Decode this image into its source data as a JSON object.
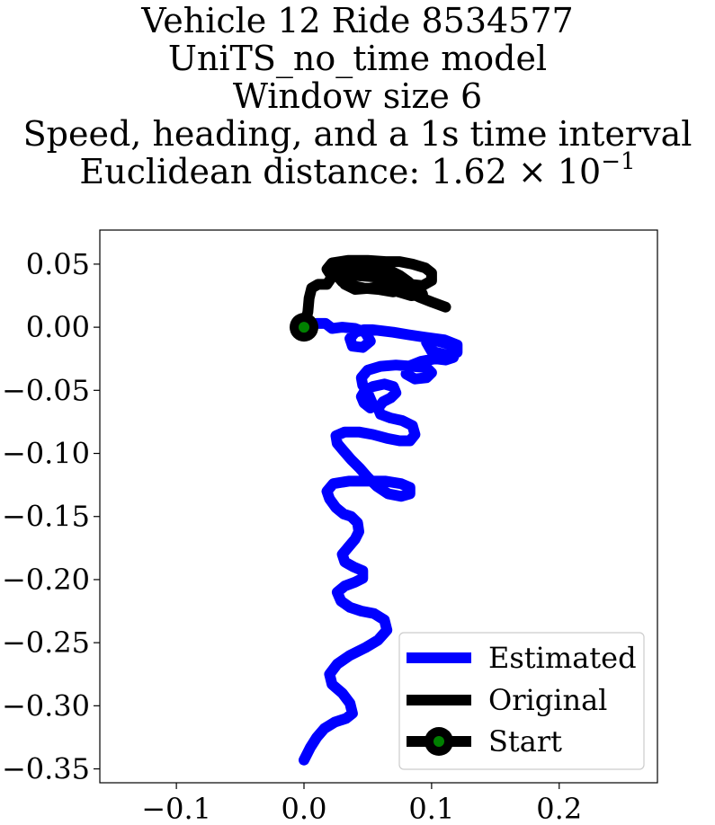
{
  "chart_data": {
    "type": "line",
    "title_lines": [
      "Vehicle 12 Ride 8534577",
      "UniTS_no_time model",
      "Window size 6",
      "Speed, heading, and a 1s time interval"
    ],
    "distance_prefix": "Euclidean distance: 1.62 × 10",
    "distance_exponent": "−1",
    "xlim": [
      -0.16,
      0.277
    ],
    "ylim": [
      -0.361,
      0.077
    ],
    "xticks": [
      -0.1,
      0.0,
      0.1,
      0.2
    ],
    "xtick_labels": [
      "−0.1",
      "0.0",
      "0.1",
      "0.2"
    ],
    "yticks": [
      0.05,
      0.0,
      -0.05,
      -0.1,
      -0.15,
      -0.2,
      -0.25,
      -0.3,
      -0.35
    ],
    "ytick_labels": [
      "0.05",
      "0.00",
      "−0.05",
      "−0.10",
      "−0.15",
      "−0.20",
      "−0.25",
      "−0.30",
      "−0.35"
    ],
    "legend_position": "lower-right",
    "series": [
      {
        "name": "Estimated",
        "color": "#0000ff",
        "points": [
          [
            0.0,
            -0.343
          ],
          [
            0.005,
            -0.333
          ],
          [
            0.01,
            -0.325
          ],
          [
            0.016,
            -0.318
          ],
          [
            0.024,
            -0.313
          ],
          [
            0.033,
            -0.31
          ],
          [
            0.038,
            -0.306
          ],
          [
            0.036,
            -0.298
          ],
          [
            0.03,
            -0.29
          ],
          [
            0.022,
            -0.283
          ],
          [
            0.02,
            -0.275
          ],
          [
            0.026,
            -0.267
          ],
          [
            0.036,
            -0.26
          ],
          [
            0.048,
            -0.254
          ],
          [
            0.058,
            -0.248
          ],
          [
            0.065,
            -0.24
          ],
          [
            0.063,
            -0.232
          ],
          [
            0.055,
            -0.227
          ],
          [
            0.045,
            -0.225
          ],
          [
            0.036,
            -0.222
          ],
          [
            0.029,
            -0.217
          ],
          [
            0.026,
            -0.21
          ],
          [
            0.032,
            -0.205
          ],
          [
            0.04,
            -0.202
          ],
          [
            0.046,
            -0.199
          ],
          [
            0.046,
            -0.193
          ],
          [
            0.039,
            -0.19
          ],
          [
            0.032,
            -0.186
          ],
          [
            0.03,
            -0.18
          ],
          [
            0.035,
            -0.174
          ],
          [
            0.04,
            -0.168
          ],
          [
            0.043,
            -0.162
          ],
          [
            0.042,
            -0.155
          ],
          [
            0.037,
            -0.15
          ],
          [
            0.031,
            -0.148
          ],
          [
            0.025,
            -0.143
          ],
          [
            0.02,
            -0.136
          ],
          [
            0.018,
            -0.13
          ],
          [
            0.023,
            -0.124
          ],
          [
            0.035,
            -0.122
          ],
          [
            0.05,
            -0.122
          ],
          [
            0.064,
            -0.122
          ],
          [
            0.076,
            -0.124
          ],
          [
            0.083,
            -0.127
          ],
          [
            0.083,
            -0.132
          ],
          [
            0.076,
            -0.134
          ],
          [
            0.066,
            -0.132
          ],
          [
            0.057,
            -0.126
          ],
          [
            0.05,
            -0.119
          ],
          [
            0.044,
            -0.112
          ],
          [
            0.037,
            -0.105
          ],
          [
            0.031,
            -0.098
          ],
          [
            0.026,
            -0.092
          ],
          [
            0.025,
            -0.086
          ],
          [
            0.032,
            -0.083
          ],
          [
            0.043,
            -0.083
          ],
          [
            0.054,
            -0.085
          ],
          [
            0.065,
            -0.088
          ],
          [
            0.075,
            -0.09
          ],
          [
            0.083,
            -0.09
          ],
          [
            0.087,
            -0.085
          ],
          [
            0.085,
            -0.078
          ],
          [
            0.077,
            -0.074
          ],
          [
            0.068,
            -0.072
          ],
          [
            0.06,
            -0.069
          ],
          [
            0.058,
            -0.064
          ],
          [
            0.062,
            -0.059
          ],
          [
            0.068,
            -0.056
          ],
          [
            0.072,
            -0.052
          ],
          [
            0.07,
            -0.047
          ],
          [
            0.063,
            -0.045
          ],
          [
            0.054,
            -0.047
          ],
          [
            0.048,
            -0.05
          ],
          [
            0.045,
            -0.055
          ],
          [
            0.047,
            -0.06
          ],
          [
            0.052,
            -0.064
          ],
          [
            0.053,
            -0.059
          ],
          [
            0.05,
            -0.052
          ],
          [
            0.046,
            -0.046
          ],
          [
            0.045,
            -0.04
          ],
          [
            0.05,
            -0.034
          ],
          [
            0.06,
            -0.031
          ],
          [
            0.072,
            -0.03
          ],
          [
            0.085,
            -0.031
          ],
          [
            0.096,
            -0.032
          ],
          [
            0.1,
            -0.036
          ],
          [
            0.096,
            -0.04
          ],
          [
            0.087,
            -0.041
          ],
          [
            0.08,
            -0.037
          ],
          [
            0.082,
            -0.031
          ],
          [
            0.092,
            -0.027
          ],
          [
            0.103,
            -0.025
          ],
          [
            0.111,
            -0.026
          ],
          [
            0.117,
            -0.024
          ],
          [
            0.119,
            -0.019
          ],
          [
            0.115,
            -0.014
          ],
          [
            0.105,
            -0.011
          ],
          [
            0.096,
            -0.012
          ],
          [
            0.1,
            -0.019
          ],
          [
            0.112,
            -0.022
          ],
          [
            0.12,
            -0.02
          ],
          [
            0.12,
            -0.014
          ],
          [
            0.11,
            -0.01
          ],
          [
            0.095,
            -0.008
          ],
          [
            0.082,
            -0.006
          ],
          [
            0.07,
            -0.004
          ],
          [
            0.062,
            -0.003
          ],
          [
            0.054,
            -0.002
          ],
          [
            0.047,
            -0.002
          ],
          [
            0.04,
            -0.004
          ],
          [
            0.036,
            -0.009
          ],
          [
            0.038,
            -0.015
          ],
          [
            0.046,
            -0.016
          ],
          [
            0.052,
            -0.011
          ],
          [
            0.048,
            -0.004
          ],
          [
            0.04,
            -0.001
          ],
          [
            0.03,
            0.0
          ],
          [
            0.022,
            -0.001
          ],
          [
            0.017,
            0.003
          ],
          [
            0.01,
            0.003
          ],
          [
            0.004,
            0.0
          ]
        ]
      },
      {
        "name": "Original",
        "color": "#000000",
        "points": [
          [
            0.0,
            0.0
          ],
          [
            0.003,
            0.012
          ],
          [
            0.004,
            0.023
          ],
          [
            0.006,
            0.031
          ],
          [
            0.011,
            0.034
          ],
          [
            0.018,
            0.034
          ],
          [
            0.022,
            0.04
          ],
          [
            0.018,
            0.046
          ],
          [
            0.022,
            0.051
          ],
          [
            0.035,
            0.053
          ],
          [
            0.05,
            0.053
          ],
          [
            0.064,
            0.052
          ],
          [
            0.075,
            0.052
          ],
          [
            0.085,
            0.05
          ],
          [
            0.095,
            0.047
          ],
          [
            0.1,
            0.043
          ],
          [
            0.1,
            0.037
          ],
          [
            0.093,
            0.033
          ],
          [
            0.083,
            0.034
          ],
          [
            0.07,
            0.038
          ],
          [
            0.055,
            0.04
          ],
          [
            0.04,
            0.041
          ],
          [
            0.028,
            0.042
          ],
          [
            0.022,
            0.047
          ],
          [
            0.028,
            0.051
          ],
          [
            0.042,
            0.051
          ],
          [
            0.055,
            0.049
          ],
          [
            0.065,
            0.046
          ],
          [
            0.075,
            0.041
          ],
          [
            0.082,
            0.036
          ],
          [
            0.08,
            0.03
          ],
          [
            0.07,
            0.028
          ],
          [
            0.058,
            0.03
          ],
          [
            0.047,
            0.031
          ],
          [
            0.038,
            0.033
          ],
          [
            0.03,
            0.036
          ],
          [
            0.025,
            0.042
          ],
          [
            0.032,
            0.047
          ],
          [
            0.045,
            0.05
          ],
          [
            0.055,
            0.046
          ],
          [
            0.062,
            0.04
          ],
          [
            0.066,
            0.034
          ],
          [
            0.074,
            0.028
          ],
          [
            0.084,
            0.025
          ],
          [
            0.093,
            0.026
          ],
          [
            0.09,
            0.032
          ],
          [
            0.077,
            0.037
          ],
          [
            0.06,
            0.04
          ],
          [
            0.045,
            0.043
          ],
          [
            0.034,
            0.04
          ],
          [
            0.032,
            0.034
          ],
          [
            0.04,
            0.03
          ],
          [
            0.052,
            0.031
          ],
          [
            0.064,
            0.033
          ],
          [
            0.078,
            0.03
          ],
          [
            0.09,
            0.024
          ],
          [
            0.1,
            0.02
          ],
          [
            0.111,
            0.016
          ]
        ]
      }
    ],
    "start": {
      "name": "Start",
      "x": 0.0,
      "y": 0.0,
      "marker_color": "#008000",
      "edge_color": "#000000"
    }
  }
}
